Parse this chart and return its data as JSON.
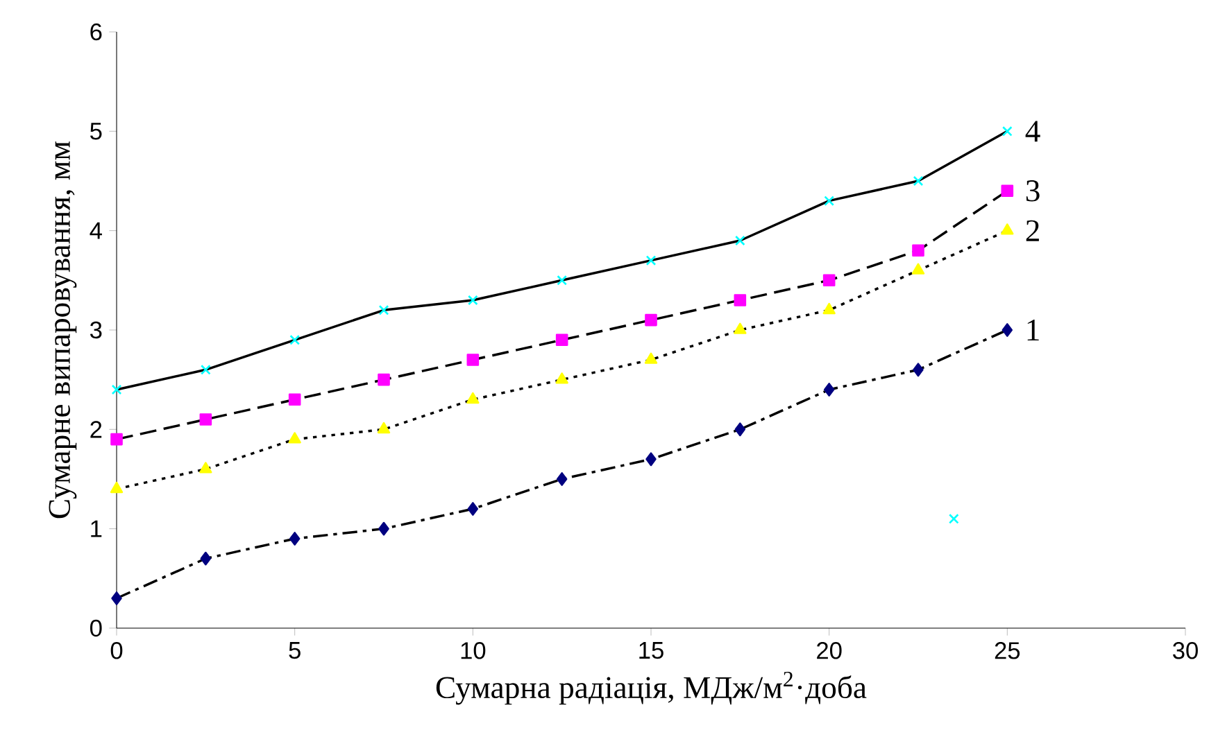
{
  "chart_data": {
    "type": "line",
    "xlabel": "Сумарна радіація, МДж/м$^{2}$·доба",
    "ylabel": "Сумарне випаровування, мм",
    "x": [
      0,
      2.5,
      5,
      7.5,
      10,
      12.5,
      15,
      17.5,
      20,
      22.5,
      25
    ],
    "xlim": [
      0,
      30
    ],
    "xticks": [
      0,
      5,
      10,
      15,
      20,
      25,
      30
    ],
    "ylim": [
      0,
      6
    ],
    "yticks": [
      0,
      1,
      2,
      3,
      4,
      5,
      6
    ],
    "grid": false,
    "series": [
      {
        "name": "1",
        "color": "#000080",
        "marker": "diamond",
        "line_style": "dashdot",
        "values": [
          0.3,
          0.7,
          0.9,
          1.0,
          1.2,
          1.5,
          1.7,
          2.0,
          2.4,
          2.6,
          3.0
        ]
      },
      {
        "name": "2",
        "color": "#ffff00",
        "marker": "triangle",
        "line_style": "dotted",
        "values": [
          1.4,
          1.6,
          1.9,
          2.0,
          2.3,
          2.5,
          2.7,
          3.0,
          3.2,
          3.6,
          4.0
        ]
      },
      {
        "name": "3",
        "color": "#ff00ff",
        "marker": "square",
        "line_style": "dashed",
        "values": [
          1.9,
          2.1,
          2.3,
          2.5,
          2.7,
          2.9,
          3.1,
          3.3,
          3.5,
          3.8,
          4.4
        ]
      },
      {
        "name": "4",
        "color": "#00ffff",
        "marker": "cross",
        "line_style": "solid",
        "values": [
          2.4,
          2.6,
          2.9,
          3.2,
          3.3,
          3.5,
          3.7,
          3.9,
          4.3,
          4.5,
          5.0
        ]
      },
      {
        "type": "scatter",
        "color": "#00ffff",
        "marker": "cross",
        "x": [
          23.5
        ],
        "values": [
          1.1
        ]
      }
    ]
  }
}
